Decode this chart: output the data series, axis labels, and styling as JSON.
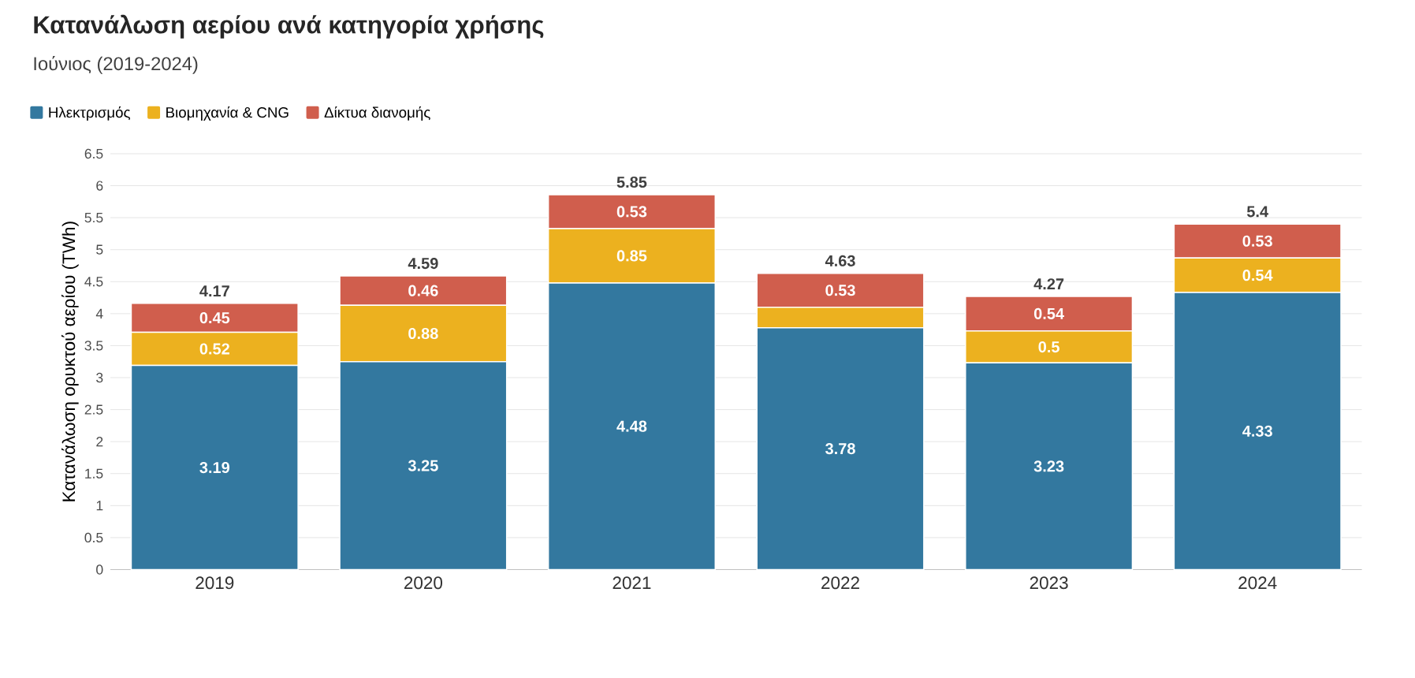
{
  "chart_data": {
    "type": "bar",
    "title": "Κατανάλωση αερίου ανά κατηγορία χρήσης",
    "subtitle": "Ιούνιος (2019-2024)",
    "ylabel": "Κατανάλωση ορυκτού αερίου (TWh)",
    "categories": [
      "2019",
      "2020",
      "2021",
      "2022",
      "2023",
      "2024"
    ],
    "stacked": true,
    "series": [
      {
        "name": "Ηλεκτρισμός",
        "color": "#33789f",
        "values": [
          3.19,
          3.25,
          4.48,
          3.78,
          3.23,
          4.33
        ],
        "value_labels": [
          "3.19",
          "3.25",
          "4.48",
          "3.78",
          "3.23",
          "4.33"
        ]
      },
      {
        "name": "Βιομηχανία & CNG",
        "color": "#ecb11f",
        "values": [
          0.52,
          0.88,
          0.85,
          0.32,
          0.5,
          0.54
        ],
        "value_labels": [
          "0.52",
          "0.88",
          "0.85",
          null,
          "0.5",
          "0.54"
        ]
      },
      {
        "name": "Δίκτυα διανομής",
        "color": "#d05e4d",
        "values": [
          0.45,
          0.46,
          0.53,
          0.53,
          0.54,
          0.53
        ],
        "value_labels": [
          "0.45",
          "0.46",
          "0.53",
          "0.53",
          "0.54",
          "0.53"
        ]
      }
    ],
    "totals": [
      "4.17",
      "4.59",
      "5.85",
      "4.63",
      "4.27",
      "5.4"
    ],
    "ylim": [
      0,
      6.5
    ],
    "yticks": [
      0,
      0.5,
      1,
      1.5,
      2,
      2.5,
      3,
      3.5,
      4,
      4.5,
      5,
      5.5,
      6,
      6.5
    ],
    "grid": "y",
    "legend": "top left"
  }
}
